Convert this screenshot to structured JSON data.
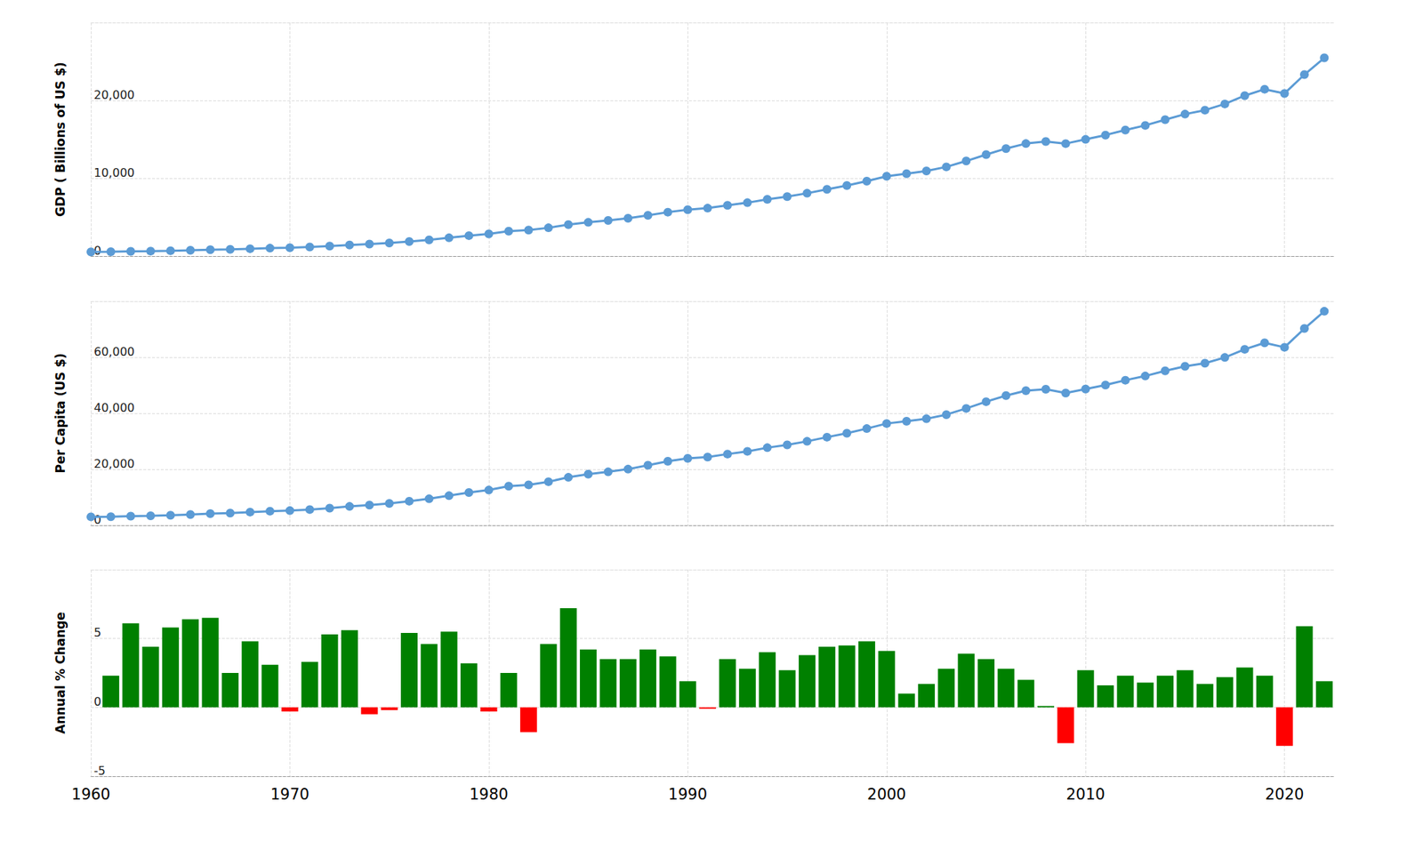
{
  "chart_data": [
    {
      "type": "line",
      "ylabel": "GDP ( Billions of US $)",
      "x": [
        1960,
        1961,
        1962,
        1963,
        1964,
        1965,
        1966,
        1967,
        1968,
        1969,
        1970,
        1971,
        1972,
        1973,
        1974,
        1975,
        1976,
        1977,
        1978,
        1979,
        1980,
        1981,
        1982,
        1983,
        1984,
        1985,
        1986,
        1987,
        1988,
        1989,
        1990,
        1991,
        1992,
        1993,
        1994,
        1995,
        1996,
        1997,
        1998,
        1999,
        2000,
        2001,
        2002,
        2003,
        2004,
        2005,
        2006,
        2007,
        2008,
        2009,
        2010,
        2011,
        2012,
        2013,
        2014,
        2015,
        2016,
        2017,
        2018,
        2019,
        2020,
        2021,
        2022
      ],
      "values": [
        543,
        563,
        605,
        638,
        686,
        744,
        815,
        862,
        943,
        1019,
        1073,
        1165,
        1280,
        1425,
        1545,
        1684,
        1873,
        2082,
        2352,
        2627,
        2857,
        3207,
        3344,
        3634,
        4037,
        4339,
        4580,
        4855,
        5236,
        5642,
        5963,
        6158,
        6520,
        6859,
        7287,
        7640,
        8073,
        8578,
        9063,
        9631,
        10251,
        10582,
        10936,
        11458,
        12214,
        13037,
        13815,
        14452,
        14713,
        14449,
        14992,
        15543,
        16197,
        16785,
        17527,
        18238,
        18745,
        19543,
        20612,
        21433,
        20894,
        23315,
        25463
      ],
      "color": "#5b9bd5",
      "marker": "circle",
      "xlim": [
        1960,
        2022.5
      ],
      "xticks": [
        1960,
        1970,
        1980,
        1990,
        2000,
        2010,
        2020
      ],
      "ylim": [
        0,
        30000
      ],
      "yticks": [
        0,
        {
          "value": 10000,
          "label": "10,000"
        },
        {
          "value": 20000,
          "label": "20,000"
        }
      ],
      "grid": true,
      "tick_labels": "y"
    },
    {
      "type": "line",
      "ylabel": "Per Capita (US $)",
      "x": [
        1960,
        1961,
        1962,
        1963,
        1964,
        1965,
        1966,
        1967,
        1968,
        1969,
        1970,
        1971,
        1972,
        1973,
        1974,
        1975,
        1976,
        1977,
        1978,
        1979,
        1980,
        1981,
        1982,
        1983,
        1984,
        1985,
        1986,
        1987,
        1988,
        1989,
        1990,
        1991,
        1992,
        1993,
        1994,
        1995,
        1996,
        1997,
        1998,
        1999,
        2000,
        2001,
        2002,
        2003,
        2004,
        2005,
        2006,
        2007,
        2008,
        2009,
        2010,
        2011,
        2012,
        2013,
        2014,
        2015,
        2016,
        2017,
        2018,
        2019,
        2020,
        2021,
        2022
      ],
      "values": [
        3007,
        3067,
        3244,
        3375,
        3574,
        3828,
        4146,
        4336,
        4696,
        5032,
        5234,
        5609,
        6094,
        6726,
        7226,
        7801,
        8592,
        9453,
        10565,
        11674,
        12575,
        13976,
        14434,
        15544,
        17121,
        18237,
        19071,
        20039,
        21417,
        22857,
        23889,
        24342,
        25419,
        26387,
        27695,
        28691,
        29968,
        31459,
        32854,
        34515,
        36330,
        37134,
        38023,
        39496,
        41713,
        44115,
        46299,
        48050,
        48570,
        47195,
        48651,
        50066,
        51784,
        53291,
        55123,
        56763,
        57867,
        59907,
        62823,
        65120,
        63531,
        70249,
        76399
      ],
      "color": "#5b9bd5",
      "marker": "circle",
      "xlim": [
        1960,
        2022.5
      ],
      "xticks": [
        1960,
        1970,
        1980,
        1990,
        2000,
        2010,
        2020
      ],
      "ylim": [
        0,
        80000
      ],
      "yticks": [
        0,
        {
          "value": 20000,
          "label": "20,000"
        },
        {
          "value": 40000,
          "label": "40,000"
        },
        {
          "value": 60000,
          "label": "60,000"
        }
      ],
      "grid": true,
      "tick_labels": "y"
    },
    {
      "type": "bar",
      "ylabel": "Annual % Change",
      "x": [
        1960,
        1961,
        1962,
        1963,
        1964,
        1965,
        1966,
        1967,
        1968,
        1969,
        1970,
        1971,
        1972,
        1973,
        1974,
        1975,
        1976,
        1977,
        1978,
        1979,
        1980,
        1981,
        1982,
        1983,
        1984,
        1985,
        1986,
        1987,
        1988,
        1989,
        1990,
        1991,
        1992,
        1993,
        1994,
        1995,
        1996,
        1997,
        1998,
        1999,
        2000,
        2001,
        2002,
        2003,
        2004,
        2005,
        2006,
        2007,
        2008,
        2009,
        2010,
        2011,
        2012,
        2013,
        2014,
        2015,
        2016,
        2017,
        2018,
        2019,
        2020,
        2021,
        2022
      ],
      "values": [
        null,
        2.3,
        6.1,
        4.4,
        5.8,
        6.4,
        6.5,
        2.5,
        4.8,
        3.1,
        -0.3,
        3.3,
        5.3,
        5.6,
        -0.5,
        -0.2,
        5.4,
        4.6,
        5.5,
        3.2,
        -0.3,
        2.5,
        -1.8,
        4.6,
        7.2,
        4.2,
        3.5,
        3.5,
        4.2,
        3.7,
        1.9,
        -0.1,
        3.5,
        2.8,
        4.0,
        2.7,
        3.8,
        4.4,
        4.5,
        4.8,
        4.1,
        1.0,
        1.7,
        2.8,
        3.9,
        3.5,
        2.8,
        2.0,
        0.1,
        -2.6,
        2.7,
        1.6,
        2.3,
        1.8,
        2.3,
        2.7,
        1.7,
        2.2,
        2.9,
        2.3,
        -2.8,
        5.9,
        1.9
      ],
      "colors": [
        null,
        "#008000",
        "#008000",
        "#008000",
        "#008000",
        "#008000",
        "#008000",
        "#008000",
        "#008000",
        "#008000",
        "#ff0000",
        "#008000",
        "#008000",
        "#008000",
        "#ff0000",
        "#ff0000",
        "#008000",
        "#008000",
        "#008000",
        "#008000",
        "#ff0000",
        "#008000",
        "#ff0000",
        "#008000",
        "#008000",
        "#008000",
        "#008000",
        "#008000",
        "#008000",
        "#008000",
        "#008000",
        "#ff0000",
        "#008000",
        "#008000",
        "#008000",
        "#008000",
        "#008000",
        "#008000",
        "#008000",
        "#008000",
        "#008000",
        "#008000",
        "#008000",
        "#008000",
        "#008000",
        "#008000",
        "#008000",
        "#008000",
        "#008000",
        "#ff0000",
        "#008000",
        "#008000",
        "#008000",
        "#008000",
        "#008000",
        "#008000",
        "#008000",
        "#008000",
        "#008000",
        "#008000",
        "#ff0000",
        "#008000",
        "#008000"
      ],
      "xlim": [
        1960,
        2022.5
      ],
      "xticks": [
        1960,
        1970,
        1980,
        1990,
        2000,
        2010,
        2020
      ],
      "ylim": [
        -5,
        10
      ],
      "yticks": [
        -5,
        0,
        5
      ],
      "grid": true
    }
  ]
}
